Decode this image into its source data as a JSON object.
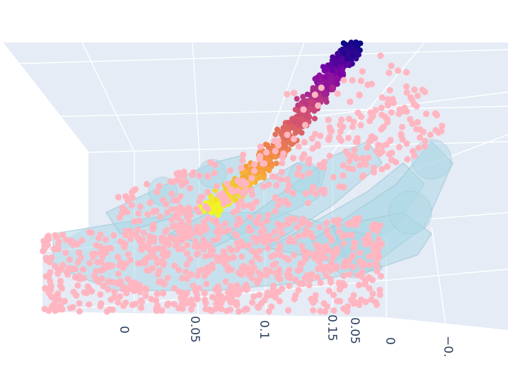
{
  "chart_data": {
    "type": "scatter",
    "is_3d": true,
    "background_color": "#e5ecf6",
    "grid": true,
    "colors": {
      "point_cloud": "#ffb6c1",
      "hand_mesh": "#add8e6",
      "colorscale": [
        "#0d0887",
        "#7e03a8",
        "#cc4778",
        "#f89540",
        "#f0f921"
      ]
    },
    "axis_ticks_1": [
      "0",
      "0.05",
      "0.1",
      "0.15"
    ],
    "axis_ticks_2": [
      "0.05",
      "0",
      "−0."
    ],
    "series": [
      {
        "description": "hand mesh surface",
        "color": "#add8e6"
      },
      {
        "description": "point cloud",
        "color": "#ffb6c1"
      },
      {
        "description": "trajectory colored by plasma scale"
      }
    ]
  }
}
